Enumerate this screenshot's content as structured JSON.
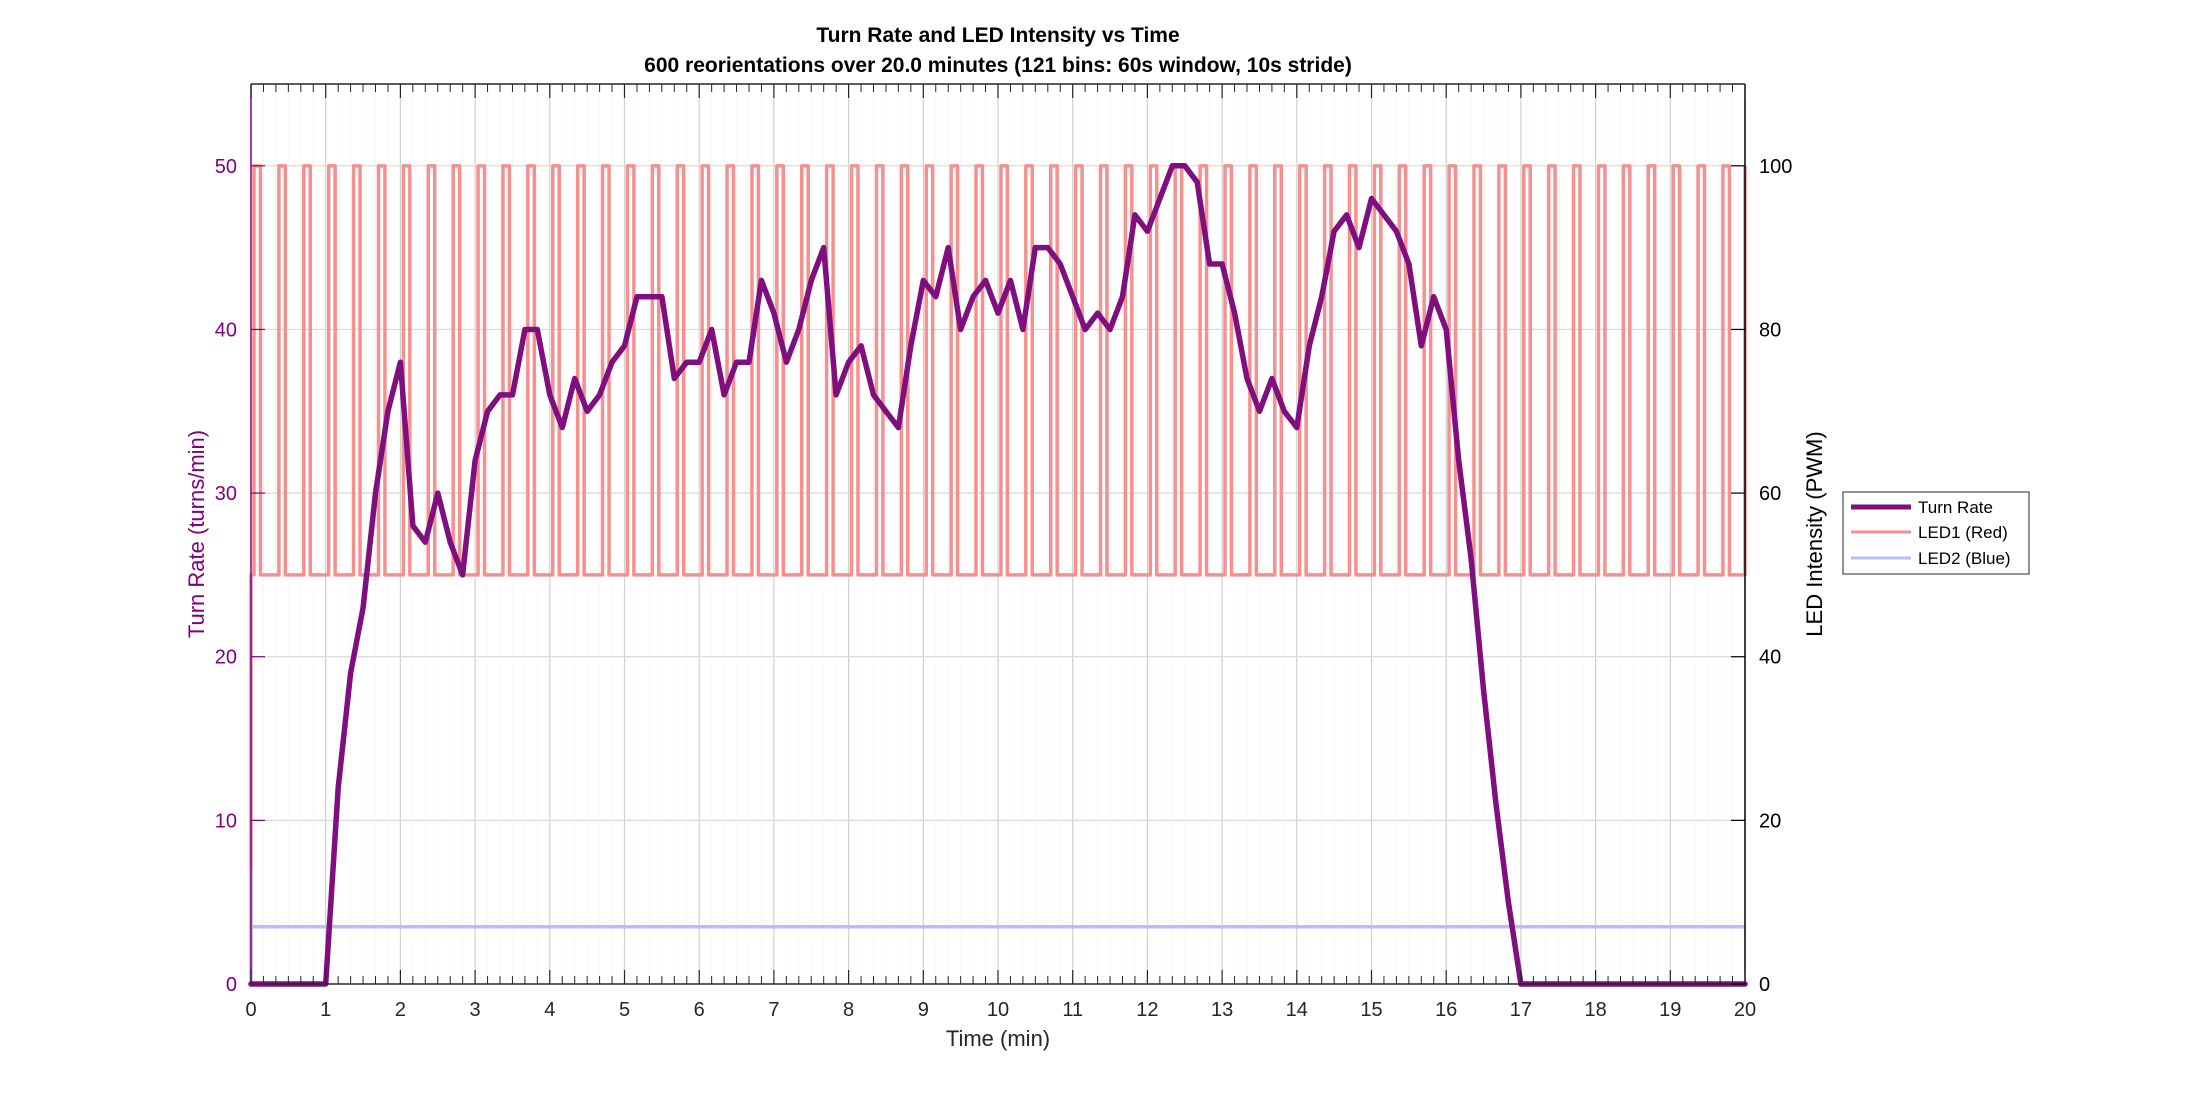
{
  "chart_data": {
    "type": "line",
    "title": "Turn Rate and LED Intensity vs Time",
    "subtitle": "600 reorientations over 20.0 minutes (121 bins: 60s window, 10s stride)",
    "xlabel": "Time (min)",
    "ylabel_left": "Turn Rate (turns/min)",
    "ylabel_right": "LED Intensity (PWM)",
    "xlim": [
      0,
      20
    ],
    "ylim_left": [
      0,
      55
    ],
    "ylim_right": [
      0,
      110
    ],
    "xticks": [
      0,
      1,
      2,
      3,
      4,
      5,
      6,
      7,
      8,
      9,
      10,
      11,
      12,
      13,
      14,
      15,
      16,
      17,
      18,
      19,
      20
    ],
    "yticks_left": [
      0,
      10,
      20,
      30,
      40,
      50
    ],
    "yticks_right": [
      0,
      20,
      40,
      60,
      80,
      100
    ],
    "grid": true,
    "legend_position": "outside-right",
    "colors": {
      "turn_rate": "#7f0f7f",
      "led1": "#f4908f",
      "led2": "#b9bdf3",
      "left_axis": "#800080",
      "right_axis": "#000000"
    },
    "series": [
      {
        "name": "Turn Rate",
        "axis": "left",
        "x": [
          0,
          0.1667,
          0.3333,
          0.5,
          0.6667,
          0.8333,
          1.0,
          1.1667,
          1.3333,
          1.5,
          1.6667,
          1.8333,
          2.0,
          2.1667,
          2.3333,
          2.5,
          2.6667,
          2.8333,
          3.0,
          3.1667,
          3.3333,
          3.5,
          3.6667,
          3.8333,
          4.0,
          4.1667,
          4.3333,
          4.5,
          4.6667,
          4.8333,
          5.0,
          5.1667,
          5.3333,
          5.5,
          5.6667,
          5.8333,
          6.0,
          6.1667,
          6.3333,
          6.5,
          6.6667,
          6.8333,
          7.0,
          7.1667,
          7.3333,
          7.5,
          7.6667,
          7.8333,
          8.0,
          8.1667,
          8.3333,
          8.5,
          8.6667,
          8.8333,
          9.0,
          9.1667,
          9.3333,
          9.5,
          9.6667,
          9.8333,
          10.0,
          10.1667,
          10.3333,
          10.5,
          10.6667,
          10.8333,
          11.0,
          11.1667,
          11.3333,
          11.5,
          11.6667,
          11.8333,
          12.0,
          12.1667,
          12.3333,
          12.5,
          12.6667,
          12.8333,
          13.0,
          13.1667,
          13.3333,
          13.5,
          13.6667,
          13.8333,
          14.0,
          14.1667,
          14.3333,
          14.5,
          14.6667,
          14.8333,
          15.0,
          15.1667,
          15.3333,
          15.5,
          15.6667,
          15.8333,
          16.0,
          16.1667,
          16.3333,
          16.5,
          16.6667,
          16.8333,
          17.0,
          17.1667,
          17.3333,
          17.5,
          17.6667,
          17.8333,
          18.0,
          18.1667,
          18.3333,
          18.5,
          18.6667,
          18.8333,
          19.0,
          19.1667,
          19.3333,
          19.5,
          19.6667,
          19.8333,
          20.0
        ],
        "values": [
          0,
          0,
          0,
          0,
          0,
          0,
          0,
          12,
          19,
          23,
          30,
          35,
          38,
          28,
          27,
          30,
          27,
          25,
          32,
          35,
          36,
          36,
          40,
          40,
          36,
          34,
          37,
          35,
          36,
          38,
          39,
          42,
          42,
          42,
          37,
          38,
          38,
          40,
          36,
          38,
          38,
          43,
          41,
          38,
          40,
          43,
          45,
          36,
          38,
          39,
          36,
          35,
          34,
          39,
          43,
          42,
          45,
          40,
          42,
          43,
          41,
          43,
          40,
          45,
          45,
          44,
          42,
          40,
          41,
          40,
          42,
          47,
          46,
          48,
          50,
          50,
          49,
          44,
          44,
          41,
          37,
          35,
          37,
          35,
          34,
          39,
          42,
          46,
          47,
          45,
          48,
          47,
          46,
          44,
          39,
          42,
          40,
          32,
          26,
          18,
          11,
          5,
          0,
          0,
          0,
          0,
          0,
          0,
          0,
          0,
          0,
          0,
          0,
          0,
          0,
          0,
          0,
          0,
          0,
          0,
          0
        ]
      },
      {
        "name": "LED1 (Red)",
        "axis": "right",
        "pattern": "square wave from t=0 to t=20, period 1/3 min (10 s on / 10 s off)",
        "high": 100,
        "low": 50,
        "period_min": 0.3333
      },
      {
        "name": "LED2 (Blue)",
        "axis": "right",
        "x": [
          0,
          20
        ],
        "values": [
          7,
          7
        ]
      }
    ]
  }
}
